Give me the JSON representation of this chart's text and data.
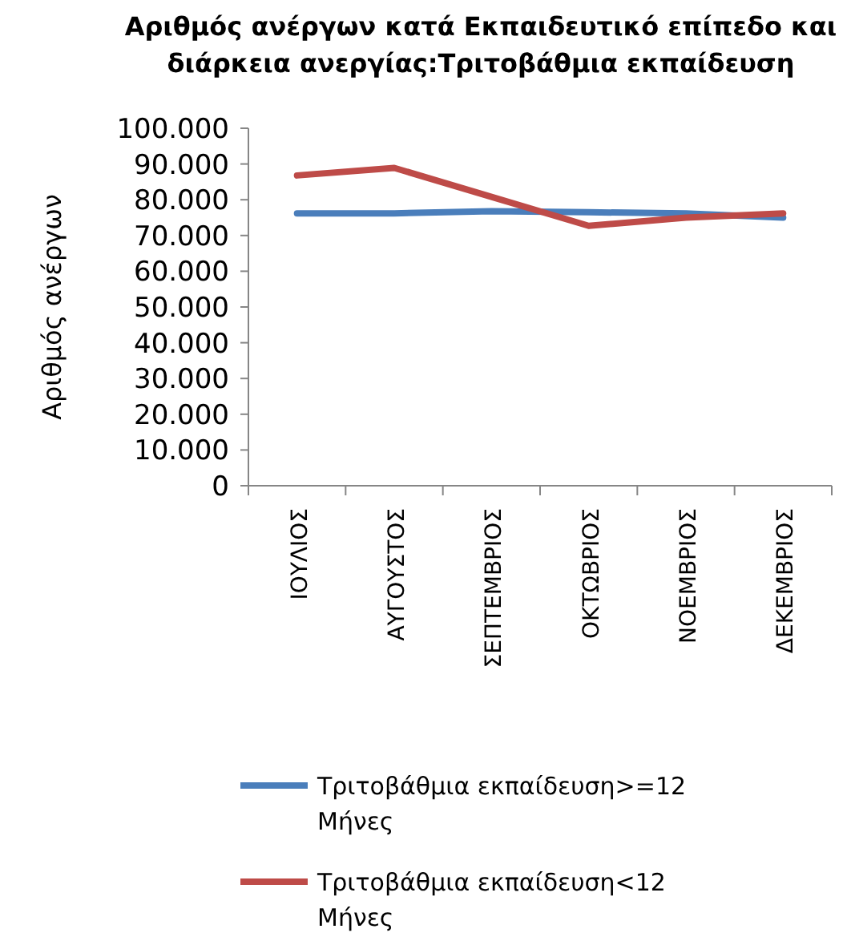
{
  "chart_data": {
    "type": "line",
    "title": "Αριθμός ανέργων κατά Εκπαιδευτικό επίπεδο και διάρκεια ανεργίας:Τριτοβάθμια εκπαίδευση",
    "ylabel": "Αριθμός ανέργων",
    "categories": [
      "ΙΟΥΛΙΟΣ",
      "ΑΥΓΟΥΣΤΟΣ",
      "ΣΕΠΤΕΜΒΡΙΟΣ",
      "ΟΚΤΩΒΡΙΟΣ",
      "ΝΟΕΜΒΡΙΟΣ",
      "ΔΕΚΕΜΒΡΙΟΣ"
    ],
    "series": [
      {
        "name": "Τριτοβάθμια εκπαίδευση>=12 Μήνες",
        "color": "#4a7ebb",
        "values": [
          76200,
          76200,
          76800,
          76500,
          76200,
          75000
        ]
      },
      {
        "name": "Τριτοβάθμια εκπαίδευση<12 Μήνες",
        "color": "#be4b48",
        "values": [
          86800,
          88900,
          80800,
          72700,
          75000,
          76200
        ]
      }
    ],
    "ylim": [
      0,
      100000
    ],
    "yticks": [
      {
        "value": 0,
        "label": "0"
      },
      {
        "value": 10000,
        "label": "10.000"
      },
      {
        "value": 20000,
        "label": "20.000"
      },
      {
        "value": 30000,
        "label": "30.000"
      },
      {
        "value": 40000,
        "label": "40.000"
      },
      {
        "value": 50000,
        "label": "50.000"
      },
      {
        "value": 60000,
        "label": "60.000"
      },
      {
        "value": 70000,
        "label": "70.000"
      },
      {
        "value": 80000,
        "label": "80.000"
      },
      {
        "value": 90000,
        "label": "90.000"
      },
      {
        "value": 100000,
        "label": "100.000"
      }
    ],
    "legend": "bottom",
    "grid": false,
    "marker": "none",
    "line_style": "solid"
  }
}
